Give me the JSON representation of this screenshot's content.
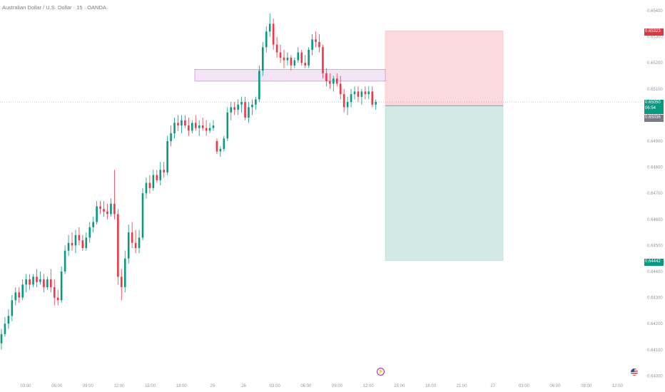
{
  "title": "Australian Dollar / U.S. Dollar · 15 · OANDA",
  "price_axis": {
    "ticks": [
      "0.65400",
      "0.65300",
      "0.65200",
      "0.65100",
      "0.65000",
      "0.64900",
      "0.64800",
      "0.64700",
      "0.64600",
      "0.64500",
      "0.64400",
      "0.64300",
      "0.64200",
      "0.64100",
      "0.64000"
    ]
  },
  "time_axis": {
    "ticks": [
      "03:00",
      "06:00",
      "09:00",
      "12:00",
      "15:00",
      "18:00",
      "25",
      "26",
      "03:00",
      "06:00",
      "09:00",
      "12:00",
      "15:00",
      "18:00",
      "21:00",
      "27",
      "03:00",
      "06:00",
      "09:00",
      "12:00"
    ]
  },
  "badges": {
    "stop_price": "0.65323",
    "last_price": "0.65050",
    "countdown": "06:54",
    "entry_price": "0.65036",
    "target_price": "0.64442"
  },
  "icons": {
    "flash": "flash-icon",
    "flag": "us-flag-icon"
  },
  "colors": {
    "up": "#089981",
    "down": "#f23645",
    "stop_zone": "#fcd9dc",
    "target_zone": "#d1ebe4",
    "zone_box": "#f3e5f5"
  },
  "chart_data": {
    "type": "candlestick",
    "symbol": "AUDUSD",
    "ylim": [
      0.64,
      0.654
    ],
    "position": {
      "side": "short",
      "entry": 0.65036,
      "stop": 0.65323,
      "target": 0.64442
    },
    "zone": {
      "low": 0.6513,
      "high": 0.65175
    },
    "candles": [
      {
        "o": 0.64125,
        "h": 0.6418,
        "l": 0.641,
        "c": 0.6416
      },
      {
        "o": 0.6416,
        "h": 0.64225,
        "l": 0.6415,
        "c": 0.642
      },
      {
        "o": 0.642,
        "h": 0.64255,
        "l": 0.6418,
        "c": 0.6423
      },
      {
        "o": 0.6423,
        "h": 0.6431,
        "l": 0.6421,
        "c": 0.6429
      },
      {
        "o": 0.6429,
        "h": 0.6434,
        "l": 0.6427,
        "c": 0.6432
      },
      {
        "o": 0.6432,
        "h": 0.6434,
        "l": 0.6428,
        "c": 0.643
      },
      {
        "o": 0.643,
        "h": 0.6437,
        "l": 0.6429,
        "c": 0.6435
      },
      {
        "o": 0.6435,
        "h": 0.6439,
        "l": 0.6432,
        "c": 0.6437
      },
      {
        "o": 0.6437,
        "h": 0.6439,
        "l": 0.6433,
        "c": 0.6435
      },
      {
        "o": 0.6435,
        "h": 0.6439,
        "l": 0.6434,
        "c": 0.6438
      },
      {
        "o": 0.6438,
        "h": 0.6441,
        "l": 0.6434,
        "c": 0.6436
      },
      {
        "o": 0.6436,
        "h": 0.644,
        "l": 0.6435,
        "c": 0.6437
      },
      {
        "o": 0.6437,
        "h": 0.6439,
        "l": 0.6432,
        "c": 0.6434
      },
      {
        "o": 0.6434,
        "h": 0.6438,
        "l": 0.6433,
        "c": 0.6437
      },
      {
        "o": 0.6437,
        "h": 0.6441,
        "l": 0.6432,
        "c": 0.6434
      },
      {
        "o": 0.6434,
        "h": 0.6437,
        "l": 0.6427,
        "c": 0.643
      },
      {
        "o": 0.643,
        "h": 0.6433,
        "l": 0.6427,
        "c": 0.6429
      },
      {
        "o": 0.6429,
        "h": 0.6442,
        "l": 0.6428,
        "c": 0.644
      },
      {
        "o": 0.644,
        "h": 0.645,
        "l": 0.6439,
        "c": 0.6448
      },
      {
        "o": 0.6448,
        "h": 0.6454,
        "l": 0.6446,
        "c": 0.6451
      },
      {
        "o": 0.6451,
        "h": 0.6455,
        "l": 0.6448,
        "c": 0.645
      },
      {
        "o": 0.645,
        "h": 0.6456,
        "l": 0.6447,
        "c": 0.6454
      },
      {
        "o": 0.6454,
        "h": 0.6457,
        "l": 0.645,
        "c": 0.6452
      },
      {
        "o": 0.6452,
        "h": 0.6454,
        "l": 0.6448,
        "c": 0.6449
      },
      {
        "o": 0.6449,
        "h": 0.6455,
        "l": 0.6448,
        "c": 0.6453
      },
      {
        "o": 0.6453,
        "h": 0.6459,
        "l": 0.6451,
        "c": 0.6457
      },
      {
        "o": 0.6457,
        "h": 0.6461,
        "l": 0.6455,
        "c": 0.6459
      },
      {
        "o": 0.6459,
        "h": 0.6467,
        "l": 0.6458,
        "c": 0.6465
      },
      {
        "o": 0.6465,
        "h": 0.6467,
        "l": 0.6462,
        "c": 0.6464
      },
      {
        "o": 0.6464,
        "h": 0.6467,
        "l": 0.6461,
        "c": 0.6463
      },
      {
        "o": 0.6463,
        "h": 0.6466,
        "l": 0.646,
        "c": 0.6462
      },
      {
        "o": 0.6462,
        "h": 0.6468,
        "l": 0.6461,
        "c": 0.6466
      },
      {
        "o": 0.6466,
        "h": 0.6479,
        "l": 0.646,
        "c": 0.6462
      },
      {
        "o": 0.6462,
        "h": 0.6464,
        "l": 0.6435,
        "c": 0.6438
      },
      {
        "o": 0.6438,
        "h": 0.6441,
        "l": 0.6429,
        "c": 0.6434
      },
      {
        "o": 0.6434,
        "h": 0.6448,
        "l": 0.6432,
        "c": 0.6445
      },
      {
        "o": 0.6445,
        "h": 0.6458,
        "l": 0.6443,
        "c": 0.6455
      },
      {
        "o": 0.6455,
        "h": 0.6459,
        "l": 0.6449,
        "c": 0.6451
      },
      {
        "o": 0.6451,
        "h": 0.6456,
        "l": 0.6447,
        "c": 0.6449
      },
      {
        "o": 0.6449,
        "h": 0.6456,
        "l": 0.6447,
        "c": 0.6453
      },
      {
        "o": 0.6453,
        "h": 0.6472,
        "l": 0.6452,
        "c": 0.647
      },
      {
        "o": 0.647,
        "h": 0.6476,
        "l": 0.6468,
        "c": 0.6474
      },
      {
        "o": 0.6474,
        "h": 0.6477,
        "l": 0.647,
        "c": 0.6472
      },
      {
        "o": 0.6472,
        "h": 0.6479,
        "l": 0.6471,
        "c": 0.6477
      },
      {
        "o": 0.6477,
        "h": 0.6479,
        "l": 0.6474,
        "c": 0.6475
      },
      {
        "o": 0.6475,
        "h": 0.6482,
        "l": 0.6473,
        "c": 0.6479
      },
      {
        "o": 0.6479,
        "h": 0.6482,
        "l": 0.6476,
        "c": 0.6478
      },
      {
        "o": 0.6478,
        "h": 0.6492,
        "l": 0.6477,
        "c": 0.649
      },
      {
        "o": 0.649,
        "h": 0.6496,
        "l": 0.6488,
        "c": 0.6493
      },
      {
        "o": 0.6493,
        "h": 0.6499,
        "l": 0.6491,
        "c": 0.6497
      },
      {
        "o": 0.6497,
        "h": 0.65,
        "l": 0.6494,
        "c": 0.6496
      },
      {
        "o": 0.6496,
        "h": 0.65,
        "l": 0.6493,
        "c": 0.6498
      },
      {
        "o": 0.6498,
        "h": 0.65,
        "l": 0.6495,
        "c": 0.6496
      },
      {
        "o": 0.6496,
        "h": 0.6499,
        "l": 0.6492,
        "c": 0.6494
      },
      {
        "o": 0.6494,
        "h": 0.6498,
        "l": 0.6493,
        "c": 0.6497
      },
      {
        "o": 0.6497,
        "h": 0.65,
        "l": 0.6494,
        "c": 0.6495
      },
      {
        "o": 0.6495,
        "h": 0.6498,
        "l": 0.6492,
        "c": 0.6496
      },
      {
        "o": 0.6496,
        "h": 0.6499,
        "l": 0.6494,
        "c": 0.6495
      },
      {
        "o": 0.6495,
        "h": 0.6498,
        "l": 0.6492,
        "c": 0.6494
      },
      {
        "o": 0.6494,
        "h": 0.6497,
        "l": 0.6493,
        "c": 0.6495
      },
      {
        "o": 0.6495,
        "h": 0.6498,
        "l": 0.6494,
        "c": 0.6496
      },
      {
        "o": 0.649,
        "h": 0.6491,
        "l": 0.6485,
        "c": 0.6486
      },
      {
        "o": 0.6486,
        "h": 0.6488,
        "l": 0.6484,
        "c": 0.6487
      },
      {
        "o": 0.6487,
        "h": 0.6492,
        "l": 0.6486,
        "c": 0.6491
      },
      {
        "o": 0.6491,
        "h": 0.6503,
        "l": 0.649,
        "c": 0.6501
      },
      {
        "o": 0.6501,
        "h": 0.6505,
        "l": 0.6498,
        "c": 0.6503
      },
      {
        "o": 0.6503,
        "h": 0.6505,
        "l": 0.65,
        "c": 0.6502
      },
      {
        "o": 0.6502,
        "h": 0.6506,
        "l": 0.65,
        "c": 0.6504
      },
      {
        "o": 0.6504,
        "h": 0.6507,
        "l": 0.6501,
        "c": 0.6505
      },
      {
        "o": 0.6505,
        "h": 0.6507,
        "l": 0.6498,
        "c": 0.6499
      },
      {
        "o": 0.6499,
        "h": 0.6505,
        "l": 0.6497,
        "c": 0.6503
      },
      {
        "o": 0.6503,
        "h": 0.6506,
        "l": 0.65,
        "c": 0.6504
      },
      {
        "o": 0.6504,
        "h": 0.6507,
        "l": 0.6502,
        "c": 0.6506
      },
      {
        "o": 0.6506,
        "h": 0.6519,
        "l": 0.6505,
        "c": 0.6517
      },
      {
        "o": 0.6517,
        "h": 0.6528,
        "l": 0.6515,
        "c": 0.6526
      },
      {
        "o": 0.6526,
        "h": 0.6534,
        "l": 0.6524,
        "c": 0.6532
      },
      {
        "o": 0.6532,
        "h": 0.6539,
        "l": 0.653,
        "c": 0.6535
      },
      {
        "o": 0.6535,
        "h": 0.6537,
        "l": 0.6525,
        "c": 0.6527
      },
      {
        "o": 0.6527,
        "h": 0.653,
        "l": 0.6522,
        "c": 0.6524
      },
      {
        "o": 0.6524,
        "h": 0.6527,
        "l": 0.652,
        "c": 0.6522
      },
      {
        "o": 0.6522,
        "h": 0.6525,
        "l": 0.6518,
        "c": 0.6521
      },
      {
        "o": 0.6521,
        "h": 0.6524,
        "l": 0.6519,
        "c": 0.6522
      },
      {
        "o": 0.6522,
        "h": 0.6523,
        "l": 0.6517,
        "c": 0.6519
      },
      {
        "o": 0.6519,
        "h": 0.6522,
        "l": 0.6518,
        "c": 0.6521
      },
      {
        "o": 0.6521,
        "h": 0.6526,
        "l": 0.652,
        "c": 0.6524
      },
      {
        "o": 0.6524,
        "h": 0.6525,
        "l": 0.6519,
        "c": 0.652
      },
      {
        "o": 0.652,
        "h": 0.6523,
        "l": 0.6518,
        "c": 0.6519
      },
      {
        "o": 0.6519,
        "h": 0.6526,
        "l": 0.6518,
        "c": 0.6525
      },
      {
        "o": 0.6525,
        "h": 0.6531,
        "l": 0.6523,
        "c": 0.6529
      },
      {
        "o": 0.6529,
        "h": 0.6532,
        "l": 0.6526,
        "c": 0.6528
      },
      {
        "o": 0.6528,
        "h": 0.6531,
        "l": 0.6524,
        "c": 0.6526
      },
      {
        "o": 0.6526,
        "h": 0.6527,
        "l": 0.6514,
        "c": 0.6516
      },
      {
        "o": 0.6516,
        "h": 0.6518,
        "l": 0.6511,
        "c": 0.6513
      },
      {
        "o": 0.6513,
        "h": 0.6516,
        "l": 0.651,
        "c": 0.6512
      },
      {
        "o": 0.6512,
        "h": 0.6515,
        "l": 0.6509,
        "c": 0.6514
      },
      {
        "o": 0.6514,
        "h": 0.6516,
        "l": 0.6511,
        "c": 0.6512
      },
      {
        "o": 0.6512,
        "h": 0.6515,
        "l": 0.6506,
        "c": 0.6508
      },
      {
        "o": 0.6508,
        "h": 0.651,
        "l": 0.6501,
        "c": 0.6503
      },
      {
        "o": 0.6503,
        "h": 0.6507,
        "l": 0.65,
        "c": 0.6505
      },
      {
        "o": 0.6505,
        "h": 0.651,
        "l": 0.6503,
        "c": 0.6508
      },
      {
        "o": 0.6508,
        "h": 0.6511,
        "l": 0.6506,
        "c": 0.6509
      },
      {
        "o": 0.6509,
        "h": 0.6511,
        "l": 0.6505,
        "c": 0.6507
      },
      {
        "o": 0.6507,
        "h": 0.651,
        "l": 0.6504,
        "c": 0.6509
      },
      {
        "o": 0.6509,
        "h": 0.6511,
        "l": 0.6506,
        "c": 0.6508
      },
      {
        "o": 0.6508,
        "h": 0.6511,
        "l": 0.6506,
        "c": 0.6509
      },
      {
        "o": 0.6509,
        "h": 0.6511,
        "l": 0.6503,
        "c": 0.6504
      },
      {
        "o": 0.6504,
        "h": 0.6506,
        "l": 0.6502,
        "c": 0.6505
      }
    ]
  }
}
